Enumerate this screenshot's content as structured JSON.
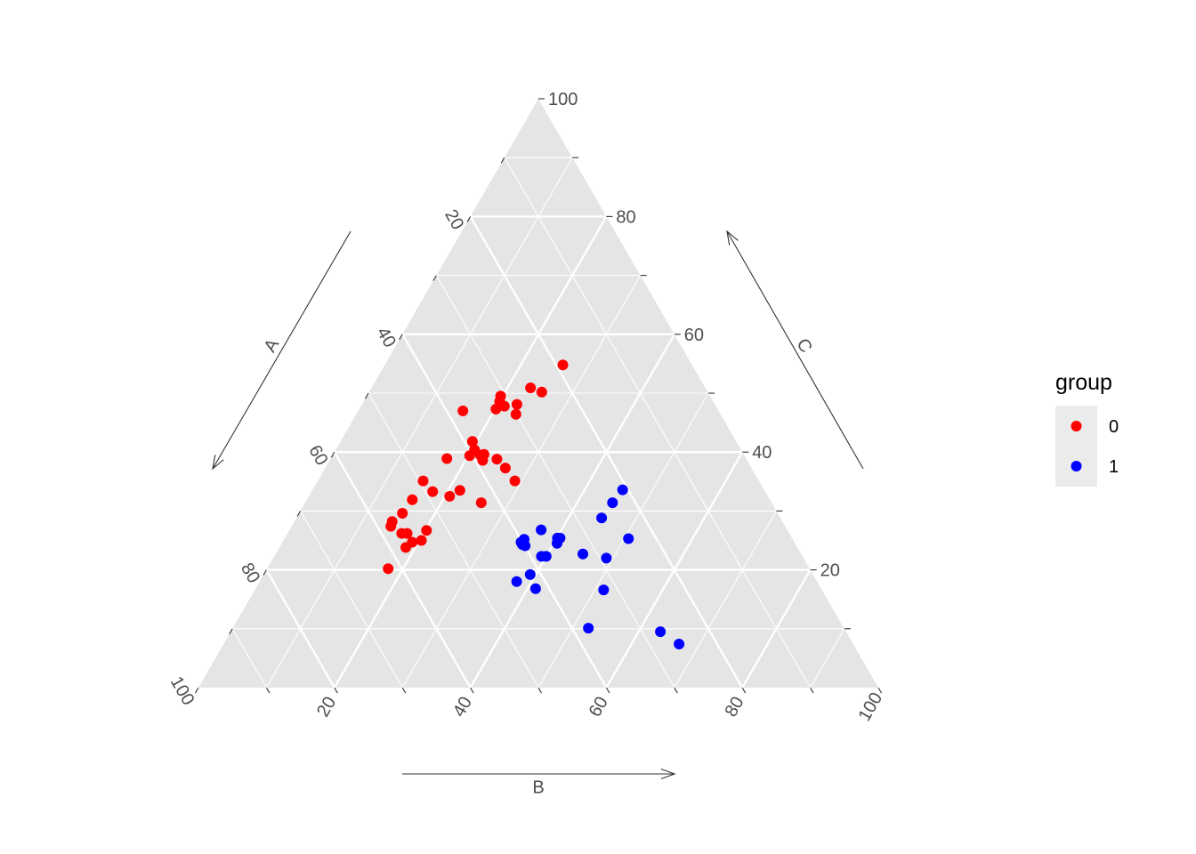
{
  "chart_data": {
    "type": "ternary-scatter",
    "axes": {
      "A": {
        "label": "A",
        "ticks": [
          20,
          40,
          60,
          80,
          100
        ]
      },
      "B": {
        "label": "B",
        "ticks": [
          20,
          40,
          60,
          80,
          100
        ]
      },
      "C": {
        "label": "C",
        "ticks": [
          20,
          40,
          60,
          80,
          100
        ]
      }
    },
    "range": [
      0,
      100
    ],
    "grid": true,
    "legend": {
      "title": "group",
      "placement": "right",
      "entries": [
        {
          "label": "0",
          "color": "#ff0000"
        },
        {
          "label": "1",
          "color": "#0000ff"
        }
      ]
    },
    "series": [
      {
        "name": "0",
        "color": "#ff0000",
        "points": [
          {
            "B": 26.2,
            "C": 54.8
          },
          {
            "B": 23.4,
            "C": 50.9
          },
          {
            "B": 25.4,
            "C": 50.2
          },
          {
            "B": 21.1,
            "C": 47.8
          },
          {
            "B": 23.5,
            "C": 46.4
          },
          {
            "B": 22.8,
            "C": 48.1
          },
          {
            "B": 20.1,
            "C": 47.3
          },
          {
            "B": 20.0,
            "C": 48.6
          },
          {
            "B": 19.7,
            "C": 49.5
          },
          {
            "B": 15.4,
            "C": 47.0
          },
          {
            "B": 20.4,
            "C": 40.4
          },
          {
            "B": 19.4,
            "C": 41.8
          },
          {
            "B": 24.5,
            "C": 38.8
          },
          {
            "B": 21.7,
            "C": 39.5
          },
          {
            "B": 22.2,
            "C": 39.6
          },
          {
            "B": 22.5,
            "C": 38.6
          },
          {
            "B": 20.2,
            "C": 39.4
          },
          {
            "B": 17.1,
            "C": 38.9
          },
          {
            "B": 26.5,
            "C": 37.3
          },
          {
            "B": 29.0,
            "C": 35.1
          },
          {
            "B": 15.5,
            "C": 35.1
          },
          {
            "B": 17.8,
            "C": 33.3
          },
          {
            "B": 15.5,
            "C": 31.9
          },
          {
            "B": 20.7,
            "C": 32.5
          },
          {
            "B": 21.7,
            "C": 33.5
          },
          {
            "B": 25.9,
            "C": 31.4
          },
          {
            "B": 15.2,
            "C": 29.6
          },
          {
            "B": 14.4,
            "C": 28.2
          },
          {
            "B": 14.6,
            "C": 27.4
          },
          {
            "B": 16.8,
            "C": 26.2
          },
          {
            "B": 17.6,
            "C": 26.2
          },
          {
            "B": 20.3,
            "C": 25.0
          },
          {
            "B": 20.2,
            "C": 26.7
          },
          {
            "B": 18.6,
            "C": 23.8
          },
          {
            "B": 19.1,
            "C": 24.7
          },
          {
            "B": 17.8,
            "C": 20.2
          }
        ]
      },
      {
        "name": "1",
        "color": "#0000ff",
        "points": [
          {
            "B": 45.6,
            "C": 33.6
          },
          {
            "B": 45.2,
            "C": 31.4
          },
          {
            "B": 44.9,
            "C": 28.8
          },
          {
            "B": 37.0,
            "C": 26.8
          },
          {
            "B": 35.1,
            "C": 24.7
          },
          {
            "B": 35.3,
            "C": 25.2
          },
          {
            "B": 35.5,
            "C": 24.3
          },
          {
            "B": 36.0,
            "C": 24.1
          },
          {
            "B": 40.1,
            "C": 25.4
          },
          {
            "B": 40.5,
            "C": 25.4
          },
          {
            "B": 40.5,
            "C": 24.5
          },
          {
            "B": 39.3,
            "C": 22.3
          },
          {
            "B": 40.0,
            "C": 22.3
          },
          {
            "B": 45.2,
            "C": 22.7
          },
          {
            "B": 50.6,
            "C": 25.3
          },
          {
            "B": 49.0,
            "C": 22.0
          },
          {
            "B": 39.2,
            "C": 19.2
          },
          {
            "B": 37.8,
            "C": 18.0
          },
          {
            "B": 41.2,
            "C": 16.8
          },
          {
            "B": 51.3,
            "C": 16.6
          },
          {
            "B": 52.3,
            "C": 10.1
          },
          {
            "B": 63.2,
            "C": 9.5
          },
          {
            "B": 67.0,
            "C": 7.4
          }
        ]
      }
    ]
  }
}
